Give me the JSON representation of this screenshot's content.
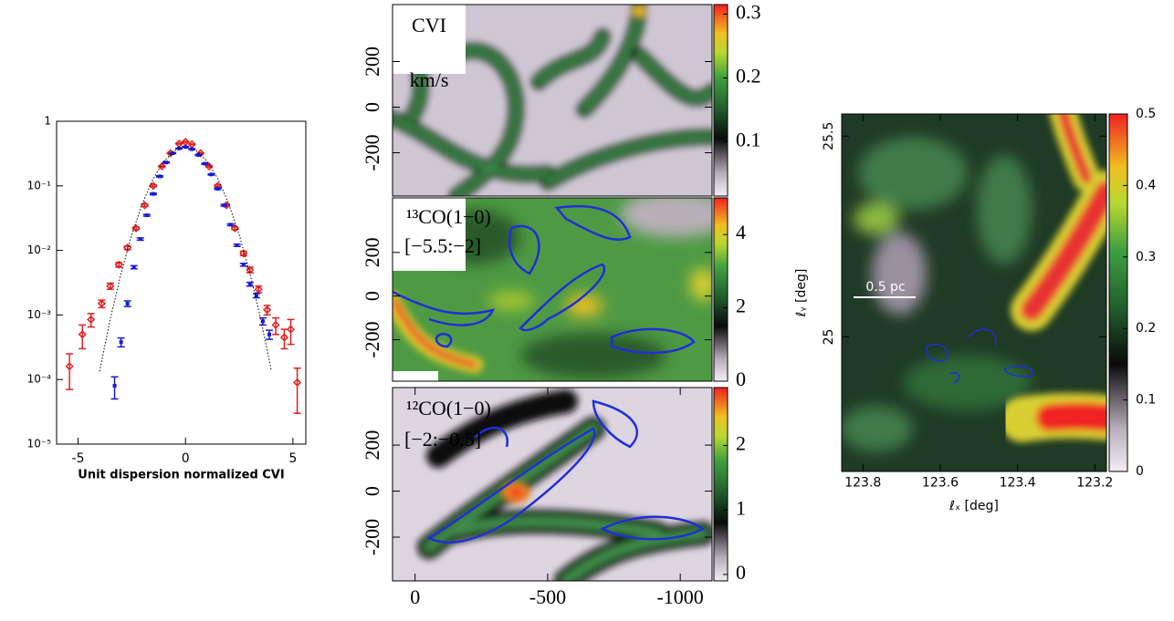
{
  "chart_data": [
    {
      "type": "scatter",
      "log_y": true,
      "xlabel": "Unit dispersion normalized CVI",
      "xlim": [
        -6,
        5.6
      ],
      "xticks": [
        -5,
        0,
        5
      ],
      "ylim": [
        1e-05,
        1
      ],
      "yticks": [
        {
          "value": 1e-05,
          "label": "10⁻⁵"
        },
        {
          "value": 0.0001,
          "label": "10⁻⁴"
        },
        {
          "value": 0.001,
          "label": "10⁻³"
        },
        {
          "value": 0.01,
          "label": "10⁻²"
        },
        {
          "value": 0.1,
          "label": "10⁻¹"
        },
        1
      ],
      "series": [
        {
          "color": "#e02020",
          "marker": "diamond",
          "x": [
            -5.4,
            -4.8,
            -4.4,
            -3.9,
            -3.5,
            -3.1,
            -2.7,
            -2.3,
            -1.9,
            -1.5,
            -1.1,
            -0.7,
            -0.3,
            0,
            0.3,
            0.7,
            1.1,
            1.5,
            1.9,
            2.3,
            2.7,
            3.0,
            3.4,
            3.8,
            4.2,
            4.6,
            4.9,
            5.2
          ],
          "values": [
            0.00016,
            0.0005,
            0.00085,
            0.0015,
            0.0028,
            0.006,
            0.011,
            0.022,
            0.05,
            0.1,
            0.2,
            0.32,
            0.45,
            0.48,
            0.44,
            0.32,
            0.2,
            0.1,
            0.05,
            0.022,
            0.009,
            0.005,
            0.0025,
            0.0012,
            0.0007,
            0.00045,
            0.0006,
            9e-05
          ],
          "errors": [
            9e-05,
            0.0002,
            0.0002,
            0.0002,
            0.0003,
            0.0005,
            0.0007,
            0.001,
            0.002,
            0.003,
            0.004,
            0.005,
            0.006,
            0.006,
            0.006,
            0.005,
            0.004,
            0.003,
            0.002,
            0.001,
            0.0007,
            0.0005,
            0.0003,
            0.0002,
            0.0002,
            0.00015,
            0.00025,
            6e-05
          ]
        },
        {
          "color": "#1a1ad8",
          "marker": "square",
          "x": [
            -3.3,
            -3.0,
            -2.7,
            -2.4,
            -2.1,
            -1.8,
            -1.5,
            -1.2,
            -0.9,
            -0.6,
            -0.3,
            0,
            0.3,
            0.6,
            0.9,
            1.2,
            1.5,
            1.8,
            2.1,
            2.4,
            2.7,
            3.0,
            3.3,
            3.6,
            3.9
          ],
          "values": [
            8e-05,
            0.00038,
            0.0015,
            0.0055,
            0.015,
            0.035,
            0.075,
            0.14,
            0.23,
            0.32,
            0.38,
            0.4,
            0.37,
            0.3,
            0.22,
            0.15,
            0.09,
            0.05,
            0.025,
            0.012,
            0.006,
            0.003,
            0.002,
            0.0008,
            0.0005
          ],
          "errors": [
            3e-05,
            6e-05,
            0.00015,
            0.0003,
            0.0006,
            0.001,
            0.002,
            0.003,
            0.004,
            0.005,
            0.005,
            0.005,
            0.005,
            0.005,
            0.004,
            0.003,
            0.002,
            0.0015,
            0.0008,
            0.0005,
            0.0003,
            0.0002,
            0.00015,
            0.0001,
            8e-05
          ]
        },
        {
          "color": "#000000",
          "style": "dotted",
          "x": [
            -4,
            -3.5,
            -3,
            -2.5,
            -2,
            -1.5,
            -1,
            -0.5,
            0,
            0.5,
            1,
            1.5,
            2,
            2.5,
            3,
            3.5,
            4
          ],
          "values": [
            0.000134,
            0.00087,
            0.0044,
            0.0175,
            0.054,
            0.13,
            0.242,
            0.352,
            0.399,
            0.352,
            0.242,
            0.13,
            0.054,
            0.0175,
            0.0044,
            0.00087,
            0.000134
          ]
        }
      ]
    },
    {
      "type": "heatmap",
      "annotations": [
        "CVI",
        "km/s"
      ],
      "xlim": [
        85,
        -1120
      ],
      "ylim": [
        -390,
        450
      ],
      "yticks": [
        -200,
        0,
        200
      ],
      "clim": [
        0.015,
        0.315
      ],
      "cticks": [
        0.1,
        0.2,
        0.3
      ]
    },
    {
      "type": "heatmap",
      "annotations": [
        "¹³CO(1−0)",
        "[−5.5:−2]"
      ],
      "xlim": [
        85,
        -1120
      ],
      "ylim": [
        -390,
        450
      ],
      "yticks": [
        -200,
        0,
        200
      ],
      "clim": [
        0,
        5
      ],
      "cticks": [
        0,
        2,
        4
      ]
    },
    {
      "type": "heatmap",
      "annotations": [
        "¹²CO(1−0)",
        "[−2:−0.5]"
      ],
      "xlim": [
        85,
        -1120
      ],
      "ylim": [
        -390,
        450
      ],
      "xticks": [
        0,
        -500,
        -1000
      ],
      "yticks": [
        -200,
        0,
        200
      ],
      "clim": [
        -0.1,
        2.9
      ],
      "cticks": [
        0,
        1,
        2
      ]
    },
    {
      "type": "heatmap",
      "annotations": [
        "0.5 pc"
      ],
      "xlabel": "ℓₓ [deg]",
      "ylabel": "ℓᵧ [deg]",
      "xlim": [
        123.855,
        123.17
      ],
      "xticks": [
        123.8,
        123.6,
        123.4,
        123.2
      ],
      "ylim": [
        24.665,
        25.555
      ],
      "yticks": [
        25,
        25.5
      ],
      "clim": [
        0,
        0.5
      ],
      "cticks": [
        0,
        0.1,
        0.2,
        0.3,
        0.4,
        0.5
      ]
    }
  ]
}
